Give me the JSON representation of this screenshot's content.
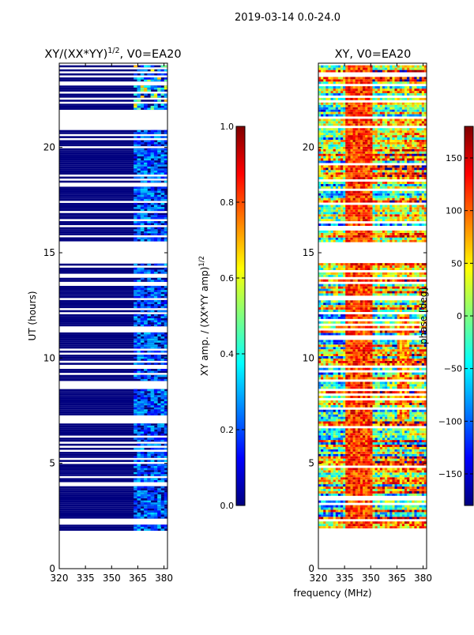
{
  "suptitle": "2019-03-14 0.0-24.0",
  "shared_xlabel": "frequency (MHz)",
  "colors": {
    "jet": [
      "#00007f",
      "#0000ff",
      "#007fff",
      "#00ffff",
      "#7fff7f",
      "#ffff00",
      "#ff7f00",
      "#ff0000",
      "#7f0000"
    ]
  },
  "chart_data": [
    {
      "type": "heatmap",
      "title_prefix": "XY/(XX*YY)",
      "title_sup": "1/2",
      "title_suffix": ", V0=EA20",
      "xlabel": "",
      "ylabel": "UT (hours)",
      "xlim": [
        320,
        382
      ],
      "ylim": [
        0,
        24
      ],
      "xticks": [
        320,
        335,
        350,
        365,
        380
      ],
      "yticks": [
        0,
        5,
        10,
        15,
        20
      ],
      "colorbar": {
        "label_prefix": "XY amp. / (XX*YY amp)",
        "label_sup": "1/2",
        "range": [
          0.0,
          1.0
        ],
        "ticks": [
          "0.0",
          "0.2",
          "0.4",
          "0.6",
          "0.8",
          "1.0"
        ]
      },
      "data_coverage_ut": [
        1.8,
        23.9
      ],
      "data_gaps_ut": [
        [
          14.4,
          15.5
        ],
        [
          20.8,
          21.6
        ]
      ],
      "signal_band_mhz": [
        362,
        382
      ]
    },
    {
      "type": "heatmap",
      "title": "XY, V0=EA20",
      "xlabel": "frequency (MHz)",
      "ylabel": "",
      "xlim": [
        320,
        382
      ],
      "ylim": [
        0,
        24
      ],
      "xticks": [
        320,
        335,
        350,
        365,
        380
      ],
      "yticks": [
        0,
        5,
        10,
        15,
        20
      ],
      "colorbar": {
        "label": "phase [deg]",
        "range": [
          -180,
          180
        ],
        "ticks": [
          "−150",
          "−100",
          "−50",
          "0",
          "50",
          "100",
          "150"
        ]
      },
      "data_coverage_ut": [
        1.8,
        23.9
      ],
      "data_gaps_ut": [
        [
          14.4,
          15.5
        ]
      ]
    }
  ]
}
